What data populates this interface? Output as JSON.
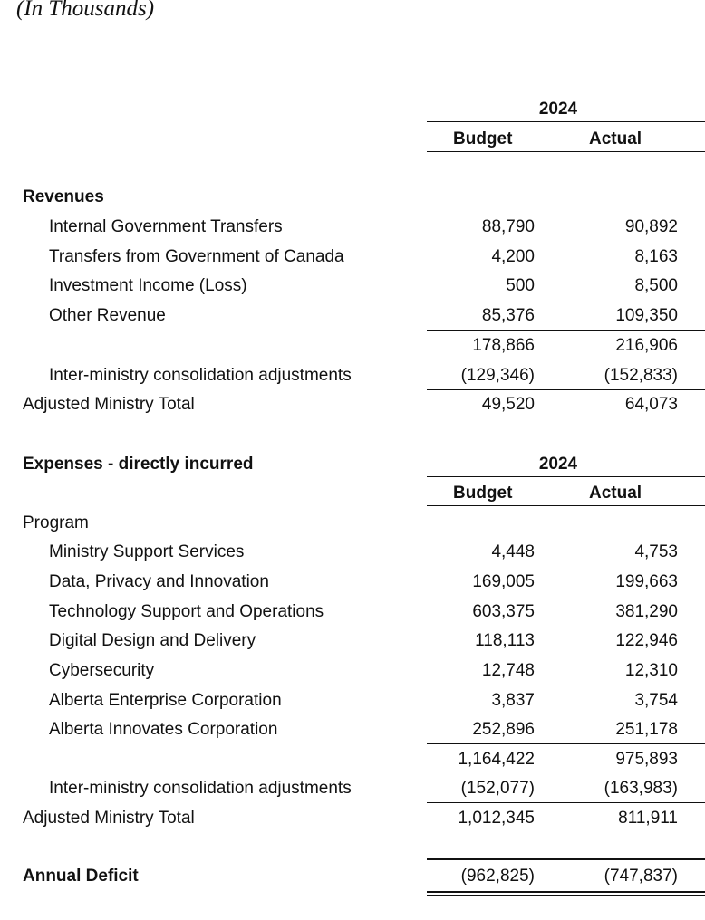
{
  "caption": "(In Thousands)",
  "year": "2024",
  "col_budget": "Budget",
  "col_actual": "Actual",
  "revenues": {
    "heading": "Revenues",
    "items": [
      {
        "label": "Internal Government Transfers",
        "budget": "88,790",
        "actual": "90,892"
      },
      {
        "label": "Transfers from Government of Canada",
        "budget": "4,200",
        "actual": "8,163"
      },
      {
        "label": "Investment Income (Loss)",
        "budget": "500",
        "actual": "8,500"
      },
      {
        "label": "Other Revenue",
        "budget": "85,376",
        "actual": "109,350"
      }
    ],
    "subtotal": {
      "budget": "178,866",
      "actual": "216,906"
    },
    "adjust": {
      "label": "Inter-ministry consolidation adjustments",
      "budget": "(129,346)",
      "actual": "(152,833)"
    },
    "total": {
      "label": "Adjusted Ministry Total",
      "budget": "49,520",
      "actual": "64,073"
    }
  },
  "expenses": {
    "heading": "Expenses - directly incurred",
    "program": "Program",
    "items": [
      {
        "label": "Ministry Support Services",
        "budget": "4,448",
        "actual": "4,753"
      },
      {
        "label": "Data, Privacy and Innovation",
        "budget": "169,005",
        "actual": "199,663"
      },
      {
        "label": "Technology Support and Operations",
        "budget": "603,375",
        "actual": "381,290"
      },
      {
        "label": "Digital Design and Delivery",
        "budget": "118,113",
        "actual": "122,946"
      },
      {
        "label": "Cybersecurity",
        "budget": "12,748",
        "actual": "12,310"
      },
      {
        "label": "Alberta Enterprise Corporation",
        "budget": "3,837",
        "actual": "3,754"
      },
      {
        "label": "Alberta Innovates Corporation",
        "budget": "252,896",
        "actual": "251,178"
      }
    ],
    "subtotal": {
      "budget": "1,164,422",
      "actual": "975,893"
    },
    "adjust": {
      "label": "Inter-ministry consolidation adjustments",
      "budget": "(152,077)",
      "actual": "(163,983)"
    },
    "total": {
      "label": "Adjusted Ministry Total",
      "budget": "1,012,345",
      "actual": "811,911"
    }
  },
  "deficit": {
    "label": "Annual Deficit",
    "budget": "(962,825)",
    "actual": "(747,837)"
  }
}
